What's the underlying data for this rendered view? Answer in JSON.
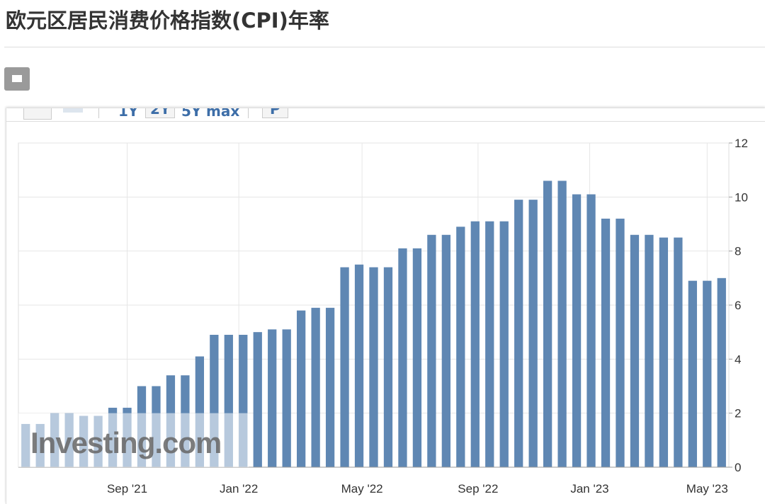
{
  "page": {
    "title": "欧元区居民消费价格指数(CPI)年率",
    "toolbar": [
      "1Y",
      "2Y",
      "5Y",
      "max",
      "P"
    ]
  },
  "chart_data": {
    "type": "bar",
    "watermark": "Investing.com",
    "color": "#5f87b3",
    "grid": true,
    "y_axis_side": "right",
    "categories": [
      null,
      null,
      null,
      null,
      null,
      null,
      null,
      null,
      null,
      null,
      null,
      null,
      null,
      null,
      null,
      null,
      null,
      null,
      null,
      null,
      null,
      null,
      null,
      null,
      null,
      null,
      null,
      null,
      null,
      null,
      null,
      null,
      null,
      null,
      null,
      null,
      null,
      null,
      null,
      null,
      null,
      null,
      null,
      null,
      null,
      null,
      null,
      null,
      null
    ],
    "values": [
      1.6,
      1.6,
      2.0,
      2.0,
      1.9,
      1.9,
      2.2,
      2.2,
      3.0,
      3.0,
      3.4,
      3.4,
      4.1,
      4.9,
      4.9,
      4.9,
      5.0,
      5.1,
      5.1,
      5.8,
      5.9,
      5.9,
      7.4,
      7.5,
      7.4,
      7.4,
      8.1,
      8.1,
      8.6,
      8.6,
      8.9,
      9.1,
      9.1,
      9.1,
      9.9,
      9.9,
      10.6,
      10.6,
      10.1,
      10.1,
      9.2,
      9.2,
      8.6,
      8.6,
      8.5,
      8.5,
      6.9,
      6.9,
      7.0
    ],
    "xticks": [
      {
        "value": 7.0,
        "label": "Sep '21"
      },
      {
        "value": 14.7,
        "label": "Jan '22"
      },
      {
        "value": 23.2,
        "label": "May '22"
      },
      {
        "value": 31.2,
        "label": "Sep '22"
      },
      {
        "value": 38.9,
        "label": "Jan '23"
      },
      {
        "value": 47.0,
        "label": "May '23"
      }
    ],
    "ylim": [
      0,
      12
    ],
    "yticks": [
      0,
      2,
      4,
      6,
      8,
      10,
      12
    ]
  }
}
